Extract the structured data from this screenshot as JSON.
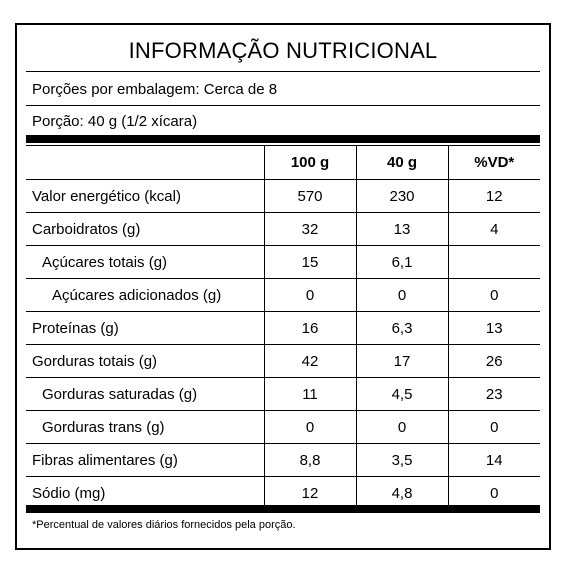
{
  "title": "INFORMAÇÃO NUTRICIONAL",
  "servings_per_package": "Porções por embalagem: Cerca de 8",
  "serving_size": "Porção: 40 g (1/2 xícara)",
  "table": {
    "headers": [
      "",
      "100 g",
      "40 g",
      "%VD*"
    ],
    "rows": [
      {
        "nutrient": "Valor energético (kcal)",
        "indent": 0,
        "per100g": "570",
        "per40g": "230",
        "vd": "12"
      },
      {
        "nutrient": "Carboidratos (g)",
        "indent": 0,
        "per100g": "32",
        "per40g": "13",
        "vd": "4"
      },
      {
        "nutrient": "Açúcares totais (g)",
        "indent": 1,
        "per100g": "15",
        "per40g": "6,1",
        "vd": ""
      },
      {
        "nutrient": "Açúcares adicionados (g)",
        "indent": 2,
        "per100g": "0",
        "per40g": "0",
        "vd": "0"
      },
      {
        "nutrient": "Proteínas (g)",
        "indent": 0,
        "per100g": "16",
        "per40g": "6,3",
        "vd": "13"
      },
      {
        "nutrient": "Gorduras totais (g)",
        "indent": 0,
        "per100g": "42",
        "per40g": "17",
        "vd": "26"
      },
      {
        "nutrient": "Gorduras saturadas (g)",
        "indent": 1,
        "per100g": "11",
        "per40g": "4,5",
        "vd": "23"
      },
      {
        "nutrient": "Gorduras trans (g)",
        "indent": 1,
        "per100g": "0",
        "per40g": "0",
        "vd": "0"
      },
      {
        "nutrient": "Fibras alimentares (g)",
        "indent": 0,
        "per100g": "8,8",
        "per40g": "3,5",
        "vd": "14"
      },
      {
        "nutrient": "Sódio (mg)",
        "indent": 0,
        "per100g": "12",
        "per40g": "4,8",
        "vd": "0"
      }
    ]
  },
  "footnote": "*Percentual de valores diários fornecidos pela porção."
}
